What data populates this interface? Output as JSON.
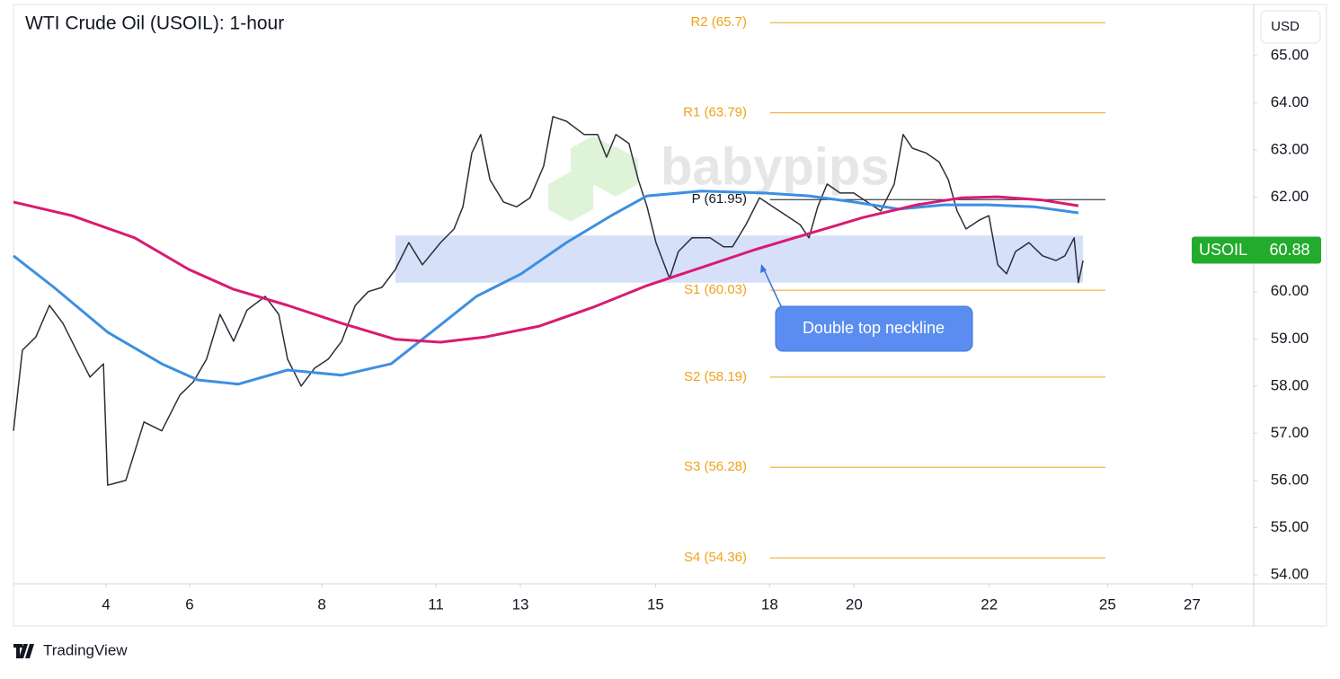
{
  "chart_data": {
    "type": "price-chart",
    "title": "WTI Crude Oil (USOIL): 1-hour",
    "currency": "USD",
    "watermark": "babypips",
    "footer": "TradingView",
    "xlim": [
      0,
      29.36
    ],
    "ylim": [
      53.81,
      66.18
    ],
    "xticks": [
      {
        "value": 2.19,
        "label": "4"
      },
      {
        "value": 4.17,
        "label": "6"
      },
      {
        "value": 7.3,
        "label": "8"
      },
      {
        "value": 10.0,
        "label": "11"
      },
      {
        "value": 12.0,
        "label": "13"
      },
      {
        "value": 15.2,
        "label": "15"
      },
      {
        "value": 17.9,
        "label": "18"
      },
      {
        "value": 19.9,
        "label": "20"
      },
      {
        "value": 23.1,
        "label": "22"
      },
      {
        "value": 25.9,
        "label": "25"
      },
      {
        "value": 27.9,
        "label": "27"
      }
    ],
    "yticks": [
      {
        "value": 54,
        "label": "54.00"
      },
      {
        "value": 55,
        "label": "55.00"
      },
      {
        "value": 56,
        "label": "56.00"
      },
      {
        "value": 57,
        "label": "57.00"
      },
      {
        "value": 58,
        "label": "58.00"
      },
      {
        "value": 59,
        "label": "59.00"
      },
      {
        "value": 60,
        "label": "60.00"
      },
      {
        "value": 61,
        "label": "61.00"
      },
      {
        "value": 62,
        "label": "62.00"
      },
      {
        "value": 63,
        "label": "63.00"
      },
      {
        "value": 64,
        "label": "64.00"
      },
      {
        "value": 65,
        "label": "65.00"
      }
    ],
    "series": [
      {
        "name": "USOIL",
        "color": "#2a2e39",
        "x": [
          0,
          0.21,
          0.53,
          0.85,
          1.17,
          1.49,
          1.81,
          2.13,
          2.23,
          2.66,
          3.09,
          3.51,
          3.94,
          4.26,
          4.57,
          4.89,
          5.21,
          5.53,
          5.96,
          6.28,
          6.49,
          6.81,
          7.13,
          7.45,
          7.77,
          8.09,
          8.4,
          8.72,
          9.04,
          9.36,
          9.68,
          10.11,
          10.43,
          10.64,
          10.85,
          11.06,
          11.28,
          11.6,
          11.91,
          12.23,
          12.55,
          12.77,
          13.09,
          13.51,
          13.83,
          14.04,
          14.26,
          14.57,
          14.79,
          15.0,
          15.21,
          15.53,
          15.74,
          16.06,
          16.49,
          16.81,
          17.02,
          17.34,
          17.66,
          17.98,
          18.3,
          18.62,
          18.83,
          19.04,
          19.26,
          19.57,
          19.89,
          20.21,
          20.53,
          20.85,
          21.06,
          21.28,
          21.6,
          21.91,
          22.13,
          22.34,
          22.55,
          22.87,
          23.09,
          23.3,
          23.51,
          23.72,
          24.04,
          24.36,
          24.68,
          24.89,
          25.11,
          25.21,
          25.32
        ],
        "values": [
          57.05,
          58.76,
          59.04,
          59.71,
          59.33,
          58.76,
          58.19,
          58.47,
          55.9,
          56.0,
          57.24,
          57.05,
          57.81,
          58.09,
          58.57,
          59.52,
          58.95,
          59.61,
          59.9,
          59.52,
          58.57,
          58.0,
          58.38,
          58.57,
          58.95,
          59.71,
          60.0,
          60.09,
          60.47,
          61.04,
          60.57,
          61.04,
          61.33,
          61.8,
          62.94,
          63.33,
          62.37,
          61.9,
          61.8,
          61.99,
          62.66,
          63.71,
          63.61,
          63.33,
          63.33,
          62.85,
          63.33,
          63.14,
          62.37,
          61.8,
          61.04,
          60.28,
          60.85,
          61.14,
          61.14,
          60.95,
          60.95,
          61.42,
          61.99,
          61.8,
          61.61,
          61.42,
          61.14,
          61.8,
          62.28,
          62.09,
          62.09,
          61.9,
          61.71,
          62.28,
          63.33,
          63.04,
          62.94,
          62.75,
          62.37,
          61.71,
          61.33,
          61.52,
          61.61,
          60.57,
          60.38,
          60.85,
          61.04,
          60.76,
          60.66,
          60.76,
          61.14,
          60.19,
          60.66
        ]
      },
      {
        "name": "MA blue",
        "color": "#3d8fe0",
        "x": [
          0,
          0.96,
          2.23,
          3.51,
          4.36,
          5.32,
          6.49,
          7.77,
          8.94,
          9.89,
          10.96,
          12.02,
          13.09,
          14.15,
          15.0,
          16.28,
          17.77,
          18.83,
          19.89,
          20.96,
          22.02,
          23.09,
          24.15,
          25.21
        ],
        "values": [
          60.76,
          60.09,
          59.14,
          58.47,
          58.13,
          58.04,
          58.34,
          58.23,
          58.47,
          59.14,
          59.9,
          60.38,
          61.04,
          61.61,
          62.03,
          62.13,
          62.09,
          62.03,
          61.9,
          61.75,
          61.84,
          61.84,
          61.8,
          61.67
        ]
      },
      {
        "name": "MA red",
        "color": "#d81b72",
        "x": [
          0,
          1.38,
          2.87,
          4.15,
          5.21,
          6.49,
          7.77,
          9.04,
          10.11,
          11.17,
          12.45,
          13.72,
          15.0,
          16.28,
          17.55,
          18.83,
          20.11,
          21.38,
          22.45,
          23.3,
          24.36,
          25.21
        ],
        "values": [
          61.9,
          61.61,
          61.14,
          60.47,
          60.05,
          59.71,
          59.33,
          58.99,
          58.93,
          59.04,
          59.27,
          59.67,
          60.13,
          60.51,
          60.89,
          61.23,
          61.57,
          61.84,
          61.99,
          62.01,
          61.94,
          61.82
        ]
      }
    ],
    "levels": [
      {
        "label": "R2 (65.7)",
        "value": 65.7,
        "color": "#f0a21b"
      },
      {
        "label": "R1 (63.79)",
        "value": 63.79,
        "color": "#f0a21b"
      },
      {
        "label": "P (61.95)",
        "value": 61.95,
        "color": "#131722"
      },
      {
        "label": "S1 (60.03)",
        "value": 60.03,
        "color": "#f0a21b"
      },
      {
        "label": "S2 (58.19)",
        "value": 58.19,
        "color": "#f0a21b"
      },
      {
        "label": "S3 (56.28)",
        "value": 56.28,
        "color": "#f0a21b"
      },
      {
        "label": "S4 (54.36)",
        "value": 54.36,
        "color": "#f0a21b"
      }
    ],
    "level_x": [
      17.91,
      25.85
    ],
    "zone": {
      "x": [
        9.04,
        25.32
      ],
      "y": [
        60.19,
        61.19
      ],
      "color": "#c9d6f7"
    },
    "annotation": "Double top neckline",
    "last_price": {
      "label": "USOIL",
      "value": 60.88,
      "color": "#22ab2c"
    }
  }
}
